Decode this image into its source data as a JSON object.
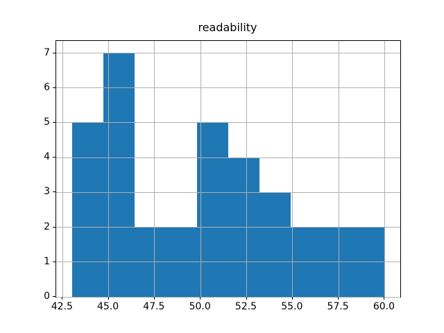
{
  "figure": {
    "background": "#ffffff"
  },
  "chart_data": {
    "type": "bar",
    "variant": "histogram",
    "title": "readability",
    "xlabel": "",
    "ylabel": "",
    "bin_edges": [
      43.0,
      44.7,
      46.4,
      48.1,
      49.8,
      51.5,
      53.2,
      54.9,
      56.6,
      58.3,
      60.0
    ],
    "counts": [
      5,
      7,
      2,
      2,
      5,
      4,
      3,
      2,
      2,
      2
    ],
    "bar_color": "#1f77b4",
    "xlim": [
      42.15,
      60.85
    ],
    "ylim": [
      0,
      7.35
    ],
    "x_ticks": [
      42.5,
      45.0,
      47.5,
      50.0,
      52.5,
      55.0,
      57.5,
      60.0
    ],
    "x_tick_labels": [
      "42.5",
      "45.0",
      "47.5",
      "50.0",
      "52.5",
      "55.0",
      "57.5",
      "60.0"
    ],
    "y_ticks": [
      0,
      1,
      2,
      3,
      4,
      5,
      6,
      7
    ],
    "y_tick_labels": [
      "0",
      "1",
      "2",
      "3",
      "4",
      "5",
      "6",
      "7"
    ],
    "grid": true,
    "grid_color": "#b0b0b0",
    "axis_color": "#000000",
    "text_color": "#000000",
    "legend": "none"
  }
}
